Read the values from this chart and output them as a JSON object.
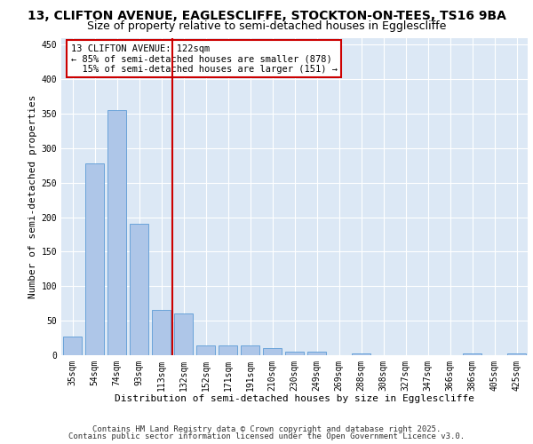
{
  "title_line1": "13, CLIFTON AVENUE, EAGLESCLIFFE, STOCKTON-ON-TEES, TS16 9BA",
  "title_line2": "Size of property relative to semi-detached houses in Egglescliffe",
  "xlabel": "Distribution of semi-detached houses by size in Egglescliffe",
  "ylabel": "Number of semi-detached properties",
  "categories": [
    "35sqm",
    "54sqm",
    "74sqm",
    "93sqm",
    "113sqm",
    "132sqm",
    "152sqm",
    "171sqm",
    "191sqm",
    "210sqm",
    "230sqm",
    "249sqm",
    "269sqm",
    "288sqm",
    "308sqm",
    "327sqm",
    "347sqm",
    "366sqm",
    "386sqm",
    "405sqm",
    "425sqm"
  ],
  "values": [
    27,
    278,
    355,
    190,
    65,
    60,
    14,
    14,
    14,
    10,
    5,
    5,
    0,
    3,
    0,
    0,
    0,
    0,
    3,
    0,
    3
  ],
  "bar_color": "#aec6e8",
  "bar_edge_color": "#5b9bd5",
  "vline_x": 4.5,
  "vline_color": "#cc0000",
  "annotation_line1": "13 CLIFTON AVENUE: 122sqm",
  "annotation_line2": "← 85% of semi-detached houses are smaller (878)",
  "annotation_line3": "  15% of semi-detached houses are larger (151) →",
  "annotation_box_color": "#cc0000",
  "ylim": [
    0,
    460
  ],
  "yticks": [
    0,
    50,
    100,
    150,
    200,
    250,
    300,
    350,
    400,
    450
  ],
  "background_color": "#dce8f5",
  "footer_line1": "Contains HM Land Registry data © Crown copyright and database right 2025.",
  "footer_line2": "Contains public sector information licensed under the Open Government Licence v3.0.",
  "title_fontsize": 10,
  "subtitle_fontsize": 9,
  "axis_label_fontsize": 8,
  "tick_fontsize": 7,
  "annotation_fontsize": 7.5,
  "footer_fontsize": 6.5
}
